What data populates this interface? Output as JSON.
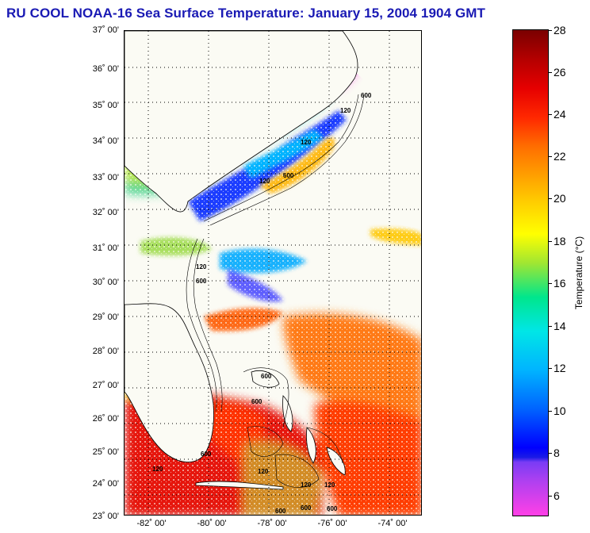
{
  "title": "RU COOL  NOAA-16  Sea Surface Temperature:  January 15, 2004 1904 GMT",
  "y_axis_labels": [
    "37˚ 00'",
    "36˚ 00'",
    "35˚ 00'",
    "34˚ 00'",
    "33˚ 00'",
    "32˚ 00'",
    "31˚ 00'",
    "30˚ 00'",
    "29˚ 00'",
    "28˚ 00'",
    "27˚ 00'",
    "26˚ 00'",
    "25˚ 00'",
    "24˚ 00'",
    "23˚ 00'"
  ],
  "x_axis_labels": [
    "-82˚ 00'",
    "-80˚ 00'",
    "-78˚ 00'",
    "-76˚ 00'",
    "-74˚ 00'"
  ],
  "colorbar": {
    "labels": [
      "28",
      "26",
      "24",
      "22",
      "20",
      "18",
      "16",
      "14",
      "12",
      "10",
      "8",
      "6"
    ],
    "unit": "Temperature (°C)"
  },
  "contour_labels": [
    "600",
    "120",
    "120",
    "600",
    "120",
    "120",
    "600",
    "600",
    "600",
    "120",
    "600",
    "600",
    "600",
    "120",
    "120",
    "600",
    "120"
  ]
}
